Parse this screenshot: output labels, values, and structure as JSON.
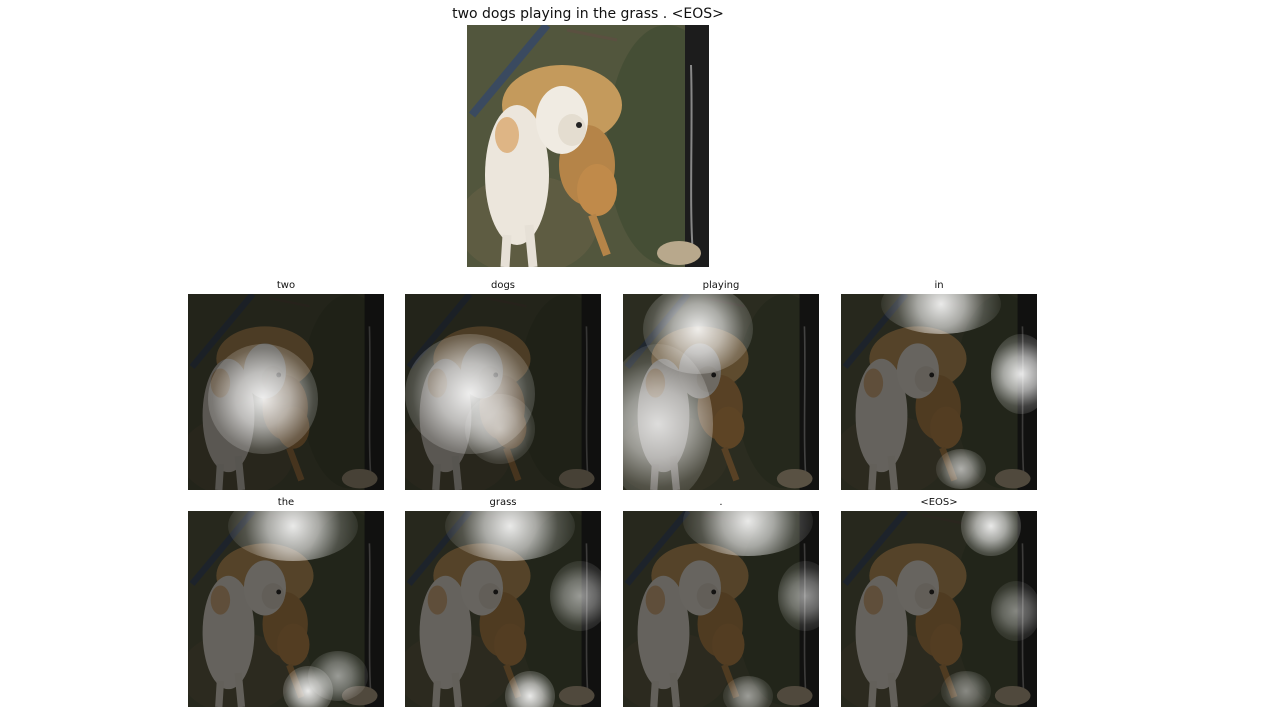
{
  "caption": "two dogs playing in the grass . <EOS>",
  "image_subject": "dogs-photo",
  "attention_tiles": [
    {
      "word": "two"
    },
    {
      "word": "dogs"
    },
    {
      "word": "playing"
    },
    {
      "word": "in"
    },
    {
      "word": "the"
    },
    {
      "word": "grass"
    },
    {
      "word": "."
    },
    {
      "word": "<EOS>"
    }
  ]
}
